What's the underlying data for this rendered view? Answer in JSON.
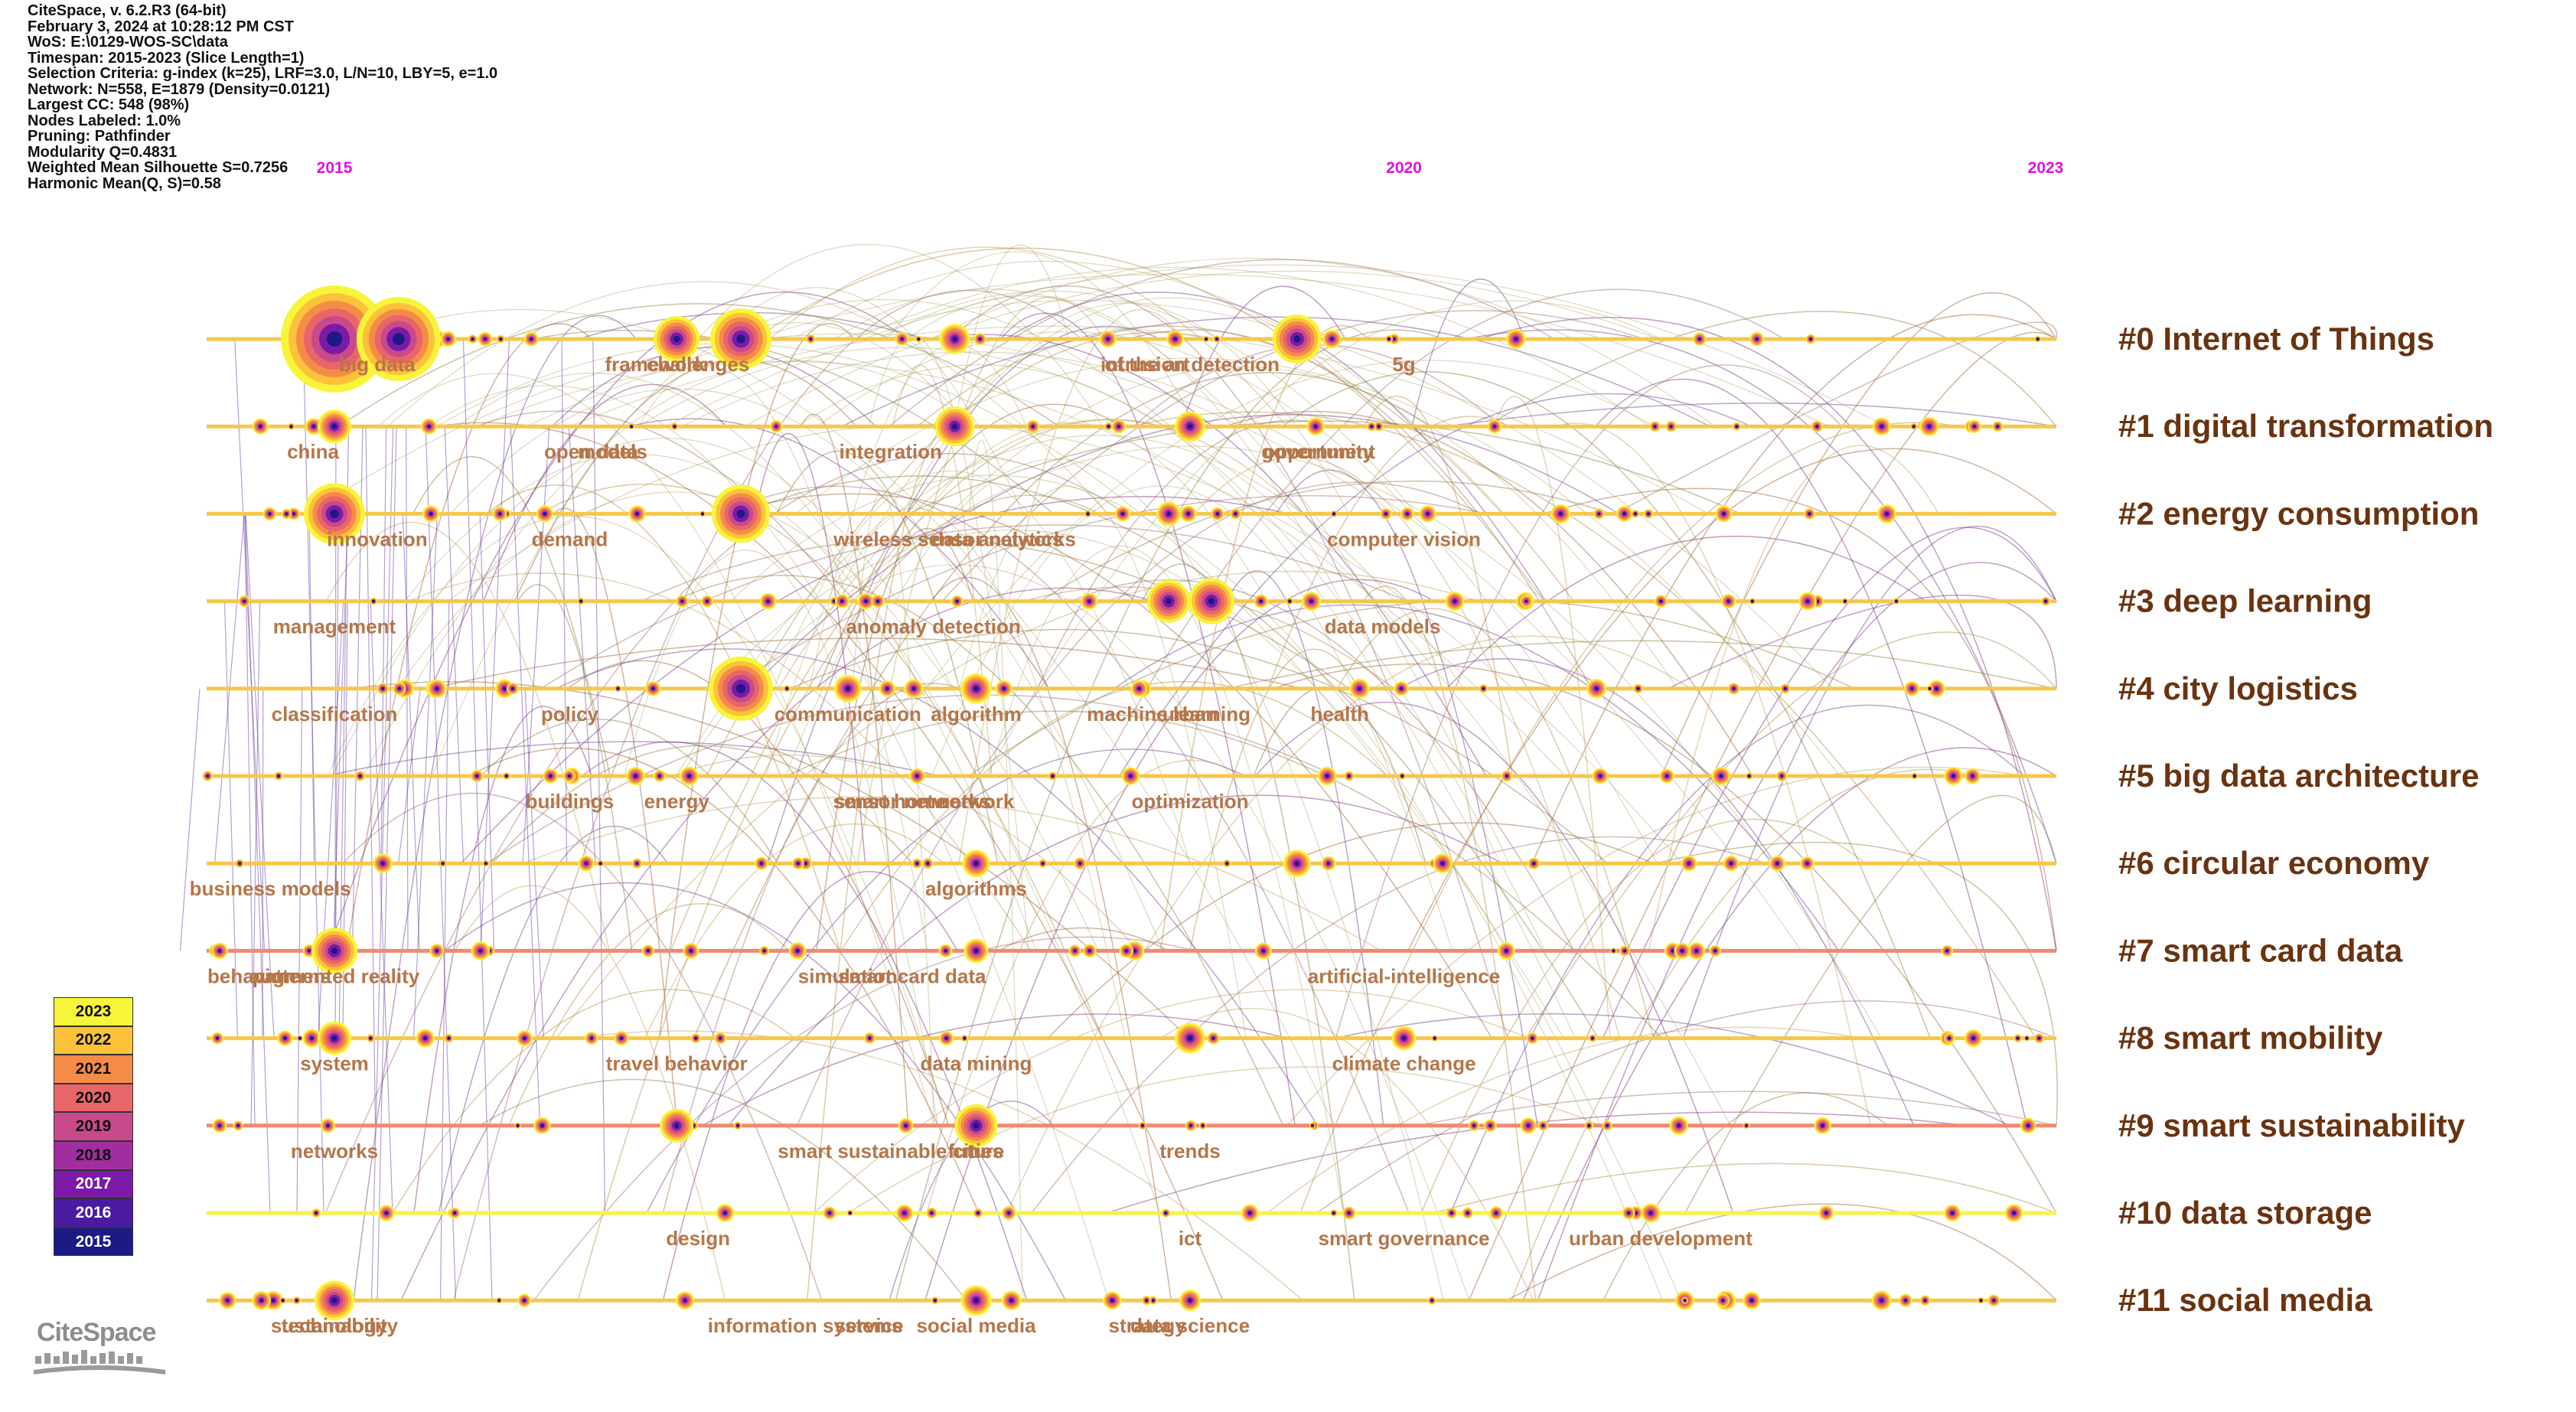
{
  "info_lines": [
    "CiteSpace, v. 6.2.R3 (64-bit)",
    "February 3, 2024 at 10:28:12 PM CST",
    "WoS: E:\\0129-WOS-SC\\data",
    "Timespan: 2015-2023 (Slice Length=1)",
    "Selection Criteria: g-index (k=25), LRF=3.0, L/N=10, LBY=5, e=1.0",
    "Network: N=558, E=1879 (Density=0.0121)",
    "Largest CC: 548 (98%)",
    "Nodes Labeled: 1.0%",
    "Pruning: Pathfinder",
    "Modularity Q=0.4831",
    "Weighted Mean Silhouette S=0.7256",
    "Harmonic Mean(Q, S)=0.58"
  ],
  "timeline_years": [
    {
      "label": "2015",
      "year": 2015
    },
    {
      "label": "2020",
      "year": 2020
    },
    {
      "label": "2023",
      "year": 2023
    }
  ],
  "clusters": [
    "#0 Internet of Things",
    "#1 digital transformation",
    "#2 energy consumption",
    "#3 deep learning",
    "#4 city logistics",
    "#5 big data architecture",
    "#6 circular economy",
    "#7 smart card data",
    "#8 smart mobility",
    "#9 smart sustainability",
    "#10 data storage",
    "#11 social media"
  ],
  "keyword_labels": [
    {
      "text": "big data",
      "row": 0,
      "year": 2015.2
    },
    {
      "text": "framework",
      "row": 0,
      "year": 2016.5
    },
    {
      "text": "challenges",
      "row": 0,
      "year": 2016.7
    },
    {
      "text": "of the art",
      "row": 0,
      "year": 2018.8
    },
    {
      "text": "intrusion detection",
      "row": 0,
      "year": 2019.0
    },
    {
      "text": "5g",
      "row": 0,
      "year": 2020.0
    },
    {
      "text": "china",
      "row": 1,
      "year": 2014.9
    },
    {
      "text": "open data",
      "row": 1,
      "year": 2016.2
    },
    {
      "text": "models",
      "row": 1,
      "year": 2016.3
    },
    {
      "text": "integration",
      "row": 1,
      "year": 2017.6
    },
    {
      "text": "opportunity",
      "row": 1,
      "year": 2019.6
    },
    {
      "text": "government",
      "row": 1,
      "year": 2019.6
    },
    {
      "text": "innovation",
      "row": 2,
      "year": 2015.2
    },
    {
      "text": "demand",
      "row": 2,
      "year": 2016.1
    },
    {
      "text": "data analytics",
      "row": 2,
      "year": 2018.1
    },
    {
      "text": "wireless sensor networks",
      "row": 2,
      "year": 2017.9
    },
    {
      "text": "computer vision",
      "row": 2,
      "year": 2020.0
    },
    {
      "text": "management",
      "row": 3,
      "year": 2015.0
    },
    {
      "text": "anomaly detection",
      "row": 3,
      "year": 2017.8
    },
    {
      "text": "data models",
      "row": 3,
      "year": 2019.9
    },
    {
      "text": "classification",
      "row": 4,
      "year": 2015.0
    },
    {
      "text": "algorithm",
      "row": 4,
      "year": 2018.0
    },
    {
      "text": "machine learning",
      "row": 4,
      "year": 2018.9
    },
    {
      "text": "policy",
      "row": 4,
      "year": 2016.1
    },
    {
      "text": "communication",
      "row": 4,
      "year": 2017.4
    },
    {
      "text": "urban",
      "row": 4,
      "year": 2019.0
    },
    {
      "text": "health",
      "row": 4,
      "year": 2019.7
    },
    {
      "text": "optimization",
      "row": 5,
      "year": 2019.0
    },
    {
      "text": "network",
      "row": 5,
      "year": 2018.0
    },
    {
      "text": "buildings",
      "row": 5,
      "year": 2016.1
    },
    {
      "text": "smart home",
      "row": 5,
      "year": 2017.6
    },
    {
      "text": "sensor networks",
      "row": 5,
      "year": 2017.7
    },
    {
      "text": "energy",
      "row": 5,
      "year": 2016.6
    },
    {
      "text": "algorithms",
      "row": 6,
      "year": 2018.0
    },
    {
      "text": "business models",
      "row": 6,
      "year": 2014.7
    },
    {
      "text": "augmented reality",
      "row": 7,
      "year": 2015.0
    },
    {
      "text": "artificial-intelligence",
      "row": 7,
      "year": 2020.0
    },
    {
      "text": "behavior",
      "row": 7,
      "year": 2014.6
    },
    {
      "text": "patterns",
      "row": 7,
      "year": 2014.8
    },
    {
      "text": "simulation",
      "row": 7,
      "year": 2017.4
    },
    {
      "text": "smart card data",
      "row": 7,
      "year": 2017.7
    },
    {
      "text": "system",
      "row": 8,
      "year": 2015.0
    },
    {
      "text": "travel behavior",
      "row": 8,
      "year": 2016.6
    },
    {
      "text": "data mining",
      "row": 8,
      "year": 2018.0
    },
    {
      "text": "climate change",
      "row": 8,
      "year": 2020.0
    },
    {
      "text": "networks",
      "row": 9,
      "year": 2015.0
    },
    {
      "text": "trends",
      "row": 9,
      "year": 2019.0
    },
    {
      "text": "smart sustainable cities",
      "row": 9,
      "year": 2017.6
    },
    {
      "text": "future",
      "row": 9,
      "year": 2018.0
    },
    {
      "text": "design",
      "row": 10,
      "year": 2016.7
    },
    {
      "text": "ict",
      "row": 10,
      "year": 2019.0
    },
    {
      "text": "smart governance",
      "row": 10,
      "year": 2020.0
    },
    {
      "text": "urban development",
      "row": 10,
      "year": 2021.2
    },
    {
      "text": "sustainability",
      "row": 11,
      "year": 2015.0
    },
    {
      "text": "information systems",
      "row": 11,
      "year": 2017.2
    },
    {
      "text": "service",
      "row": 11,
      "year": 2017.5
    },
    {
      "text": "social media",
      "row": 11,
      "year": 2018.0
    },
    {
      "text": "strategy",
      "row": 11,
      "year": 2018.8
    },
    {
      "text": "technology",
      "row": 11,
      "year": 2015.0
    },
    {
      "text": "data science",
      "row": 11,
      "year": 2019.0
    }
  ],
  "legend_years": [
    "2023",
    "2022",
    "2021",
    "2020",
    "2019",
    "2018",
    "2017",
    "2016",
    "2015"
  ],
  "year_colors": {
    "2015": "#1c1a85",
    "2016": "#4a1aa0",
    "2017": "#7b1aa8",
    "2018": "#a02ea0",
    "2019": "#c84a8a",
    "2020": "#e8666a",
    "2021": "#f48c48",
    "2022": "#fbc23a",
    "2023": "#f7f53a"
  },
  "colors": {
    "year_axis": "#e010e0",
    "keyword": "#b5764a",
    "cluster": "#6a3310",
    "logo": "#8d8d8d"
  },
  "logo_text": "CiteSpace"
}
